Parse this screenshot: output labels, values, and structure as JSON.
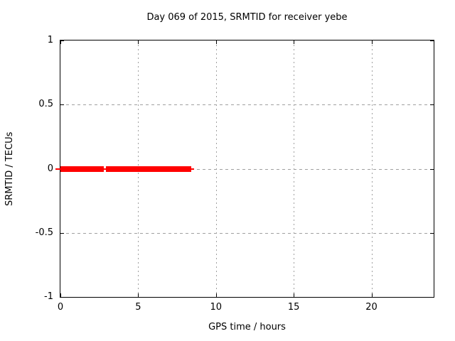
{
  "chart_data": {
    "type": "line",
    "title": "Day 069 of 2015, SRMTID for receiver yebe",
    "xlabel": "GPS time / hours",
    "ylabel": "SRMTID / TECUs",
    "xlim": [
      0,
      24
    ],
    "ylim": [
      -1,
      1
    ],
    "xticks": [
      0,
      5,
      10,
      15,
      20
    ],
    "xtick_labels": [
      "0",
      "5",
      "10",
      "15",
      "20"
    ],
    "yticks": [
      1,
      0.5,
      0,
      -0.5,
      -1
    ],
    "ytick_labels": [
      "1",
      "0.5",
      "0",
      "-0.5",
      "-1"
    ],
    "grid": true,
    "legend": "none",
    "colors": {
      "background": "#ffffff",
      "border": "#000000",
      "grid": "#a0a0a0",
      "text": "#000000",
      "series": "#ff0000"
    },
    "series": [
      {
        "name": "SRMTID",
        "color": "#ff0000",
        "value_y": 0,
        "thick_segments_hours": [
          [
            0,
            2.78
          ],
          [
            2.92,
            8.4
          ]
        ],
        "thin_baseline_hours": [
          -0.3,
          8.58
        ],
        "description": "SRMTID is constant at 0 TECUs from hour 0 to about hour 8.4, with a brief data gap near hour 2.8; no data after hour 8.6"
      }
    ]
  }
}
